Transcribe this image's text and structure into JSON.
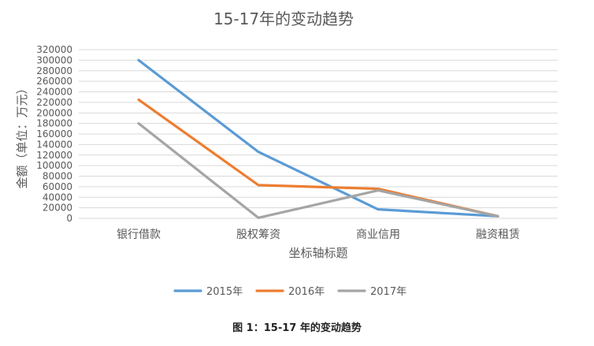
{
  "chart_data": {
    "type": "line",
    "title": "15-17年的变动趋势",
    "xlabel": "坐标轴标题",
    "ylabel": "金额（单位：万元）",
    "categories": [
      "银行借款",
      "股权筹资",
      "商业信用",
      "融资租赁"
    ],
    "ylim": [
      0,
      320000
    ],
    "ytick_step": 20000,
    "grid": true,
    "legend_position": "bottom",
    "series": [
      {
        "name": "2015年",
        "color": "#5B9BD5",
        "values": [
          300000,
          126000,
          17000,
          4000
        ]
      },
      {
        "name": "2016年",
        "color": "#ED7D31",
        "values": [
          225000,
          63000,
          56000,
          4000
        ]
      },
      {
        "name": "2017年",
        "color": "#A5A5A5",
        "values": [
          180000,
          1000,
          53000,
          4000
        ]
      }
    ]
  },
  "caption": "图 1：15-17 年的变动趋势"
}
